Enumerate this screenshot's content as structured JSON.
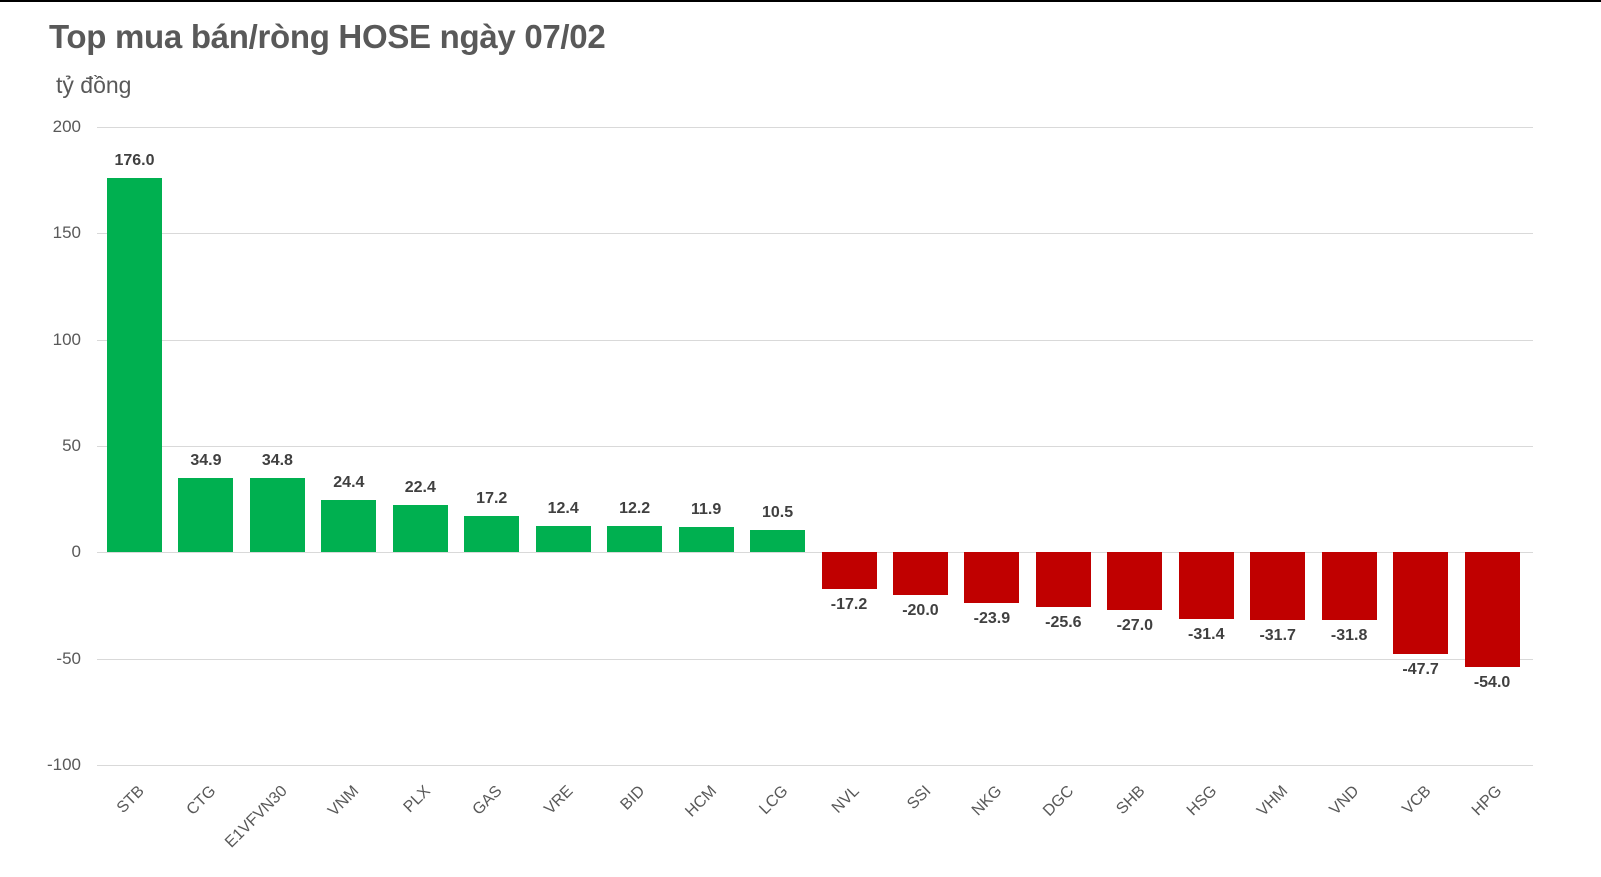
{
  "header": {
    "title": "Top mua bán/ròng HOSE ngày 07/02",
    "unit": "tỷ đồng"
  },
  "colors": {
    "positive": "#00B050",
    "negative": "#C00000",
    "grid": "#D9D9D9",
    "text": "#595959"
  },
  "chart_data": {
    "type": "bar",
    "title": "Top mua bán/ròng HOSE ngày 07/02",
    "xlabel": "",
    "ylabel": "tỷ đồng",
    "ylim": [
      -100,
      200
    ],
    "yticks": [
      200,
      150,
      100,
      50,
      0,
      -50,
      -100
    ],
    "grid": true,
    "legend": "none",
    "categories": [
      "STB",
      "CTG",
      "E1VFVN30",
      "VNM",
      "PLX",
      "GAS",
      "VRE",
      "BID",
      "HCM",
      "LCG",
      "NVL",
      "SSI",
      "NKG",
      "DGC",
      "SHB",
      "HSG",
      "VHM",
      "VND",
      "VCB",
      "HPG"
    ],
    "values": [
      176.0,
      34.9,
      34.8,
      24.4,
      22.4,
      17.2,
      12.4,
      12.2,
      11.9,
      10.5,
      -17.2,
      -20.0,
      -23.9,
      -25.6,
      -27.0,
      -31.4,
      -31.7,
      -31.8,
      -47.7,
      -54.0
    ],
    "labels": [
      "176.0",
      "34.9",
      "34.8",
      "24.4",
      "22.4",
      "17.2",
      "12.4",
      "12.2",
      "11.9",
      "10.5",
      "-17.2",
      "-20.0",
      "-23.9",
      "-25.6",
      "-27.0",
      "-31.4",
      "-31.7",
      "-31.8",
      "-47.7",
      "-54.0"
    ]
  }
}
